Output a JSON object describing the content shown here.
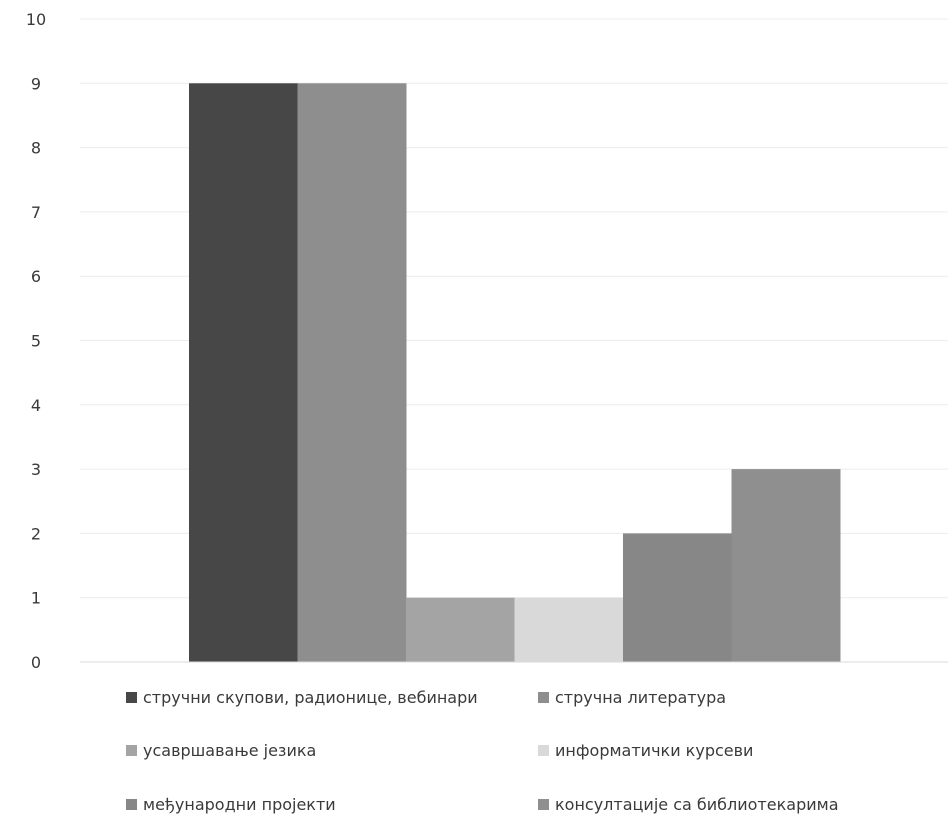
{
  "chart_data": {
    "type": "bar",
    "title": "",
    "xlabel": "",
    "ylabel": "",
    "ylim": [
      0,
      10
    ],
    "yticks": [
      0,
      1,
      2,
      3,
      4,
      5,
      6,
      7,
      8,
      9,
      10
    ],
    "grid": true,
    "legend_placement": "bottom",
    "series": [
      {
        "name": "стручни скупови, радионице, вебинари",
        "value": 9,
        "color": "#474747"
      },
      {
        "name": "стручна литература",
        "value": 9,
        "color": "#8e8e8e"
      },
      {
        "name": "усавршавање језика",
        "value": 1,
        "color": "#a4a4a4"
      },
      {
        "name": "информатички курсеви",
        "value": 1,
        "color": "#d9d9d9"
      },
      {
        "name": "међународни пројекти",
        "value": 2,
        "color": "#878787"
      },
      {
        "name": "консултације са библиотекарима",
        "value": 3,
        "color": "#8f8f8f"
      }
    ]
  }
}
